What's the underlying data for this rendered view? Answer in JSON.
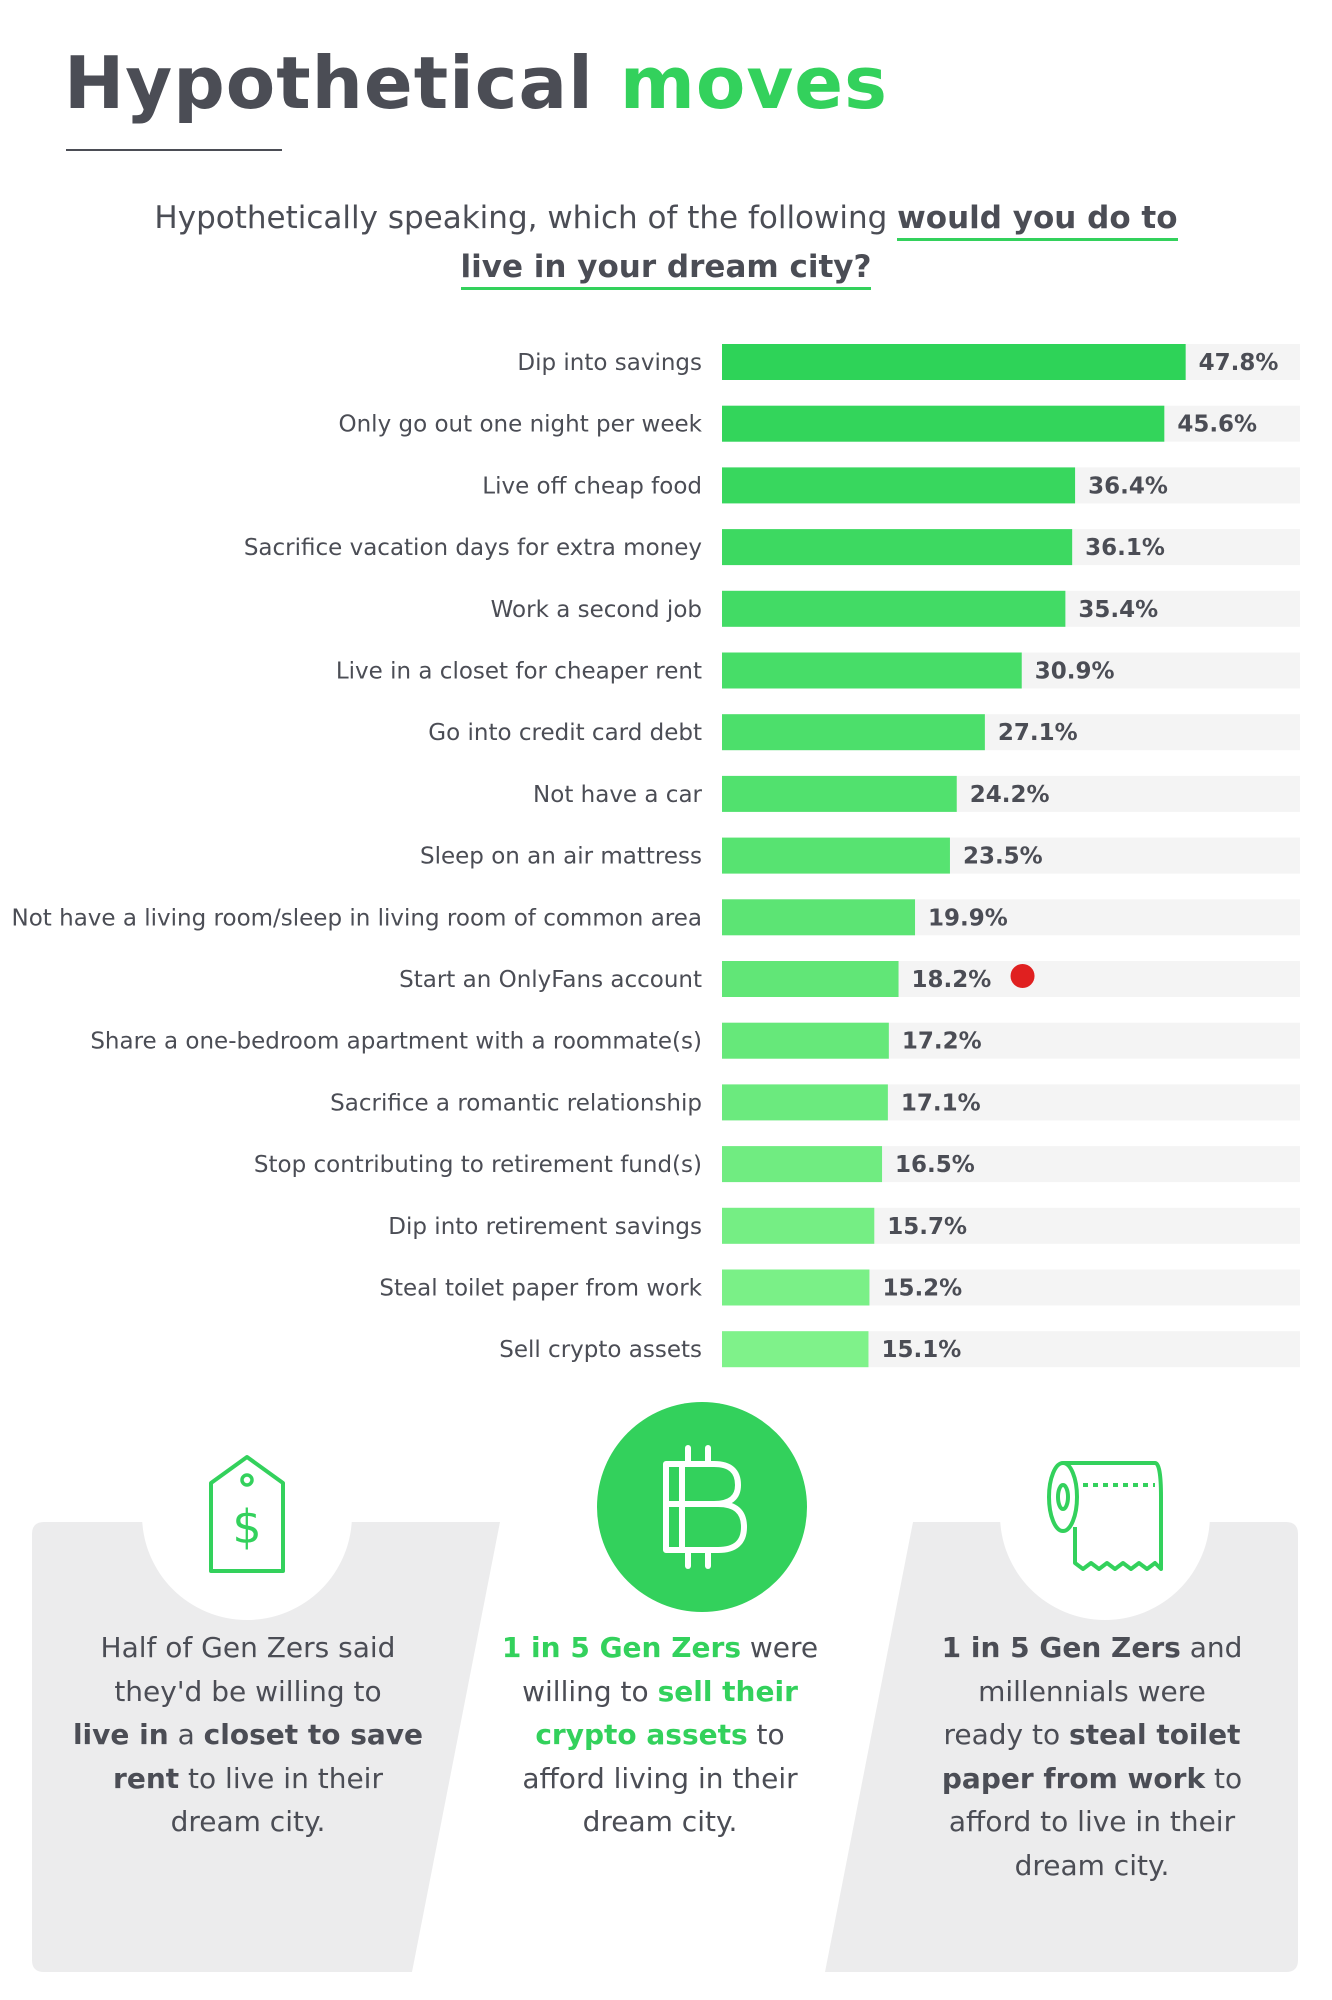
{
  "header": {
    "title_part1": "Hypothetical",
    "title_part2": "moves",
    "subtitle_plain": "Hypothetically speaking, which of the following",
    "subtitle_bold_1": "would you do to",
    "subtitle_bold_2": "live in your dream city?"
  },
  "chart_data": {
    "type": "bar",
    "orientation": "horizontal",
    "xlim": [
      0,
      60
    ],
    "categories": [
      "Dip into savings",
      "Only go out one night per week",
      "Live off cheap food",
      "Sacrifice vacation days for extra money",
      "Work a second job",
      "Live in a closet for cheaper rent",
      "Go into credit card debt",
      "Not have a car",
      "Sleep on an air mattress",
      "Not have a living room/sleep in living room of common area",
      "Start an OnlyFans account",
      "Share a one-bedroom apartment with a roommate(s)",
      "Sacrifice a romantic relationship",
      "Stop contributing to retirement fund(s)",
      "Dip into retirement savings",
      "Steal toilet paper from work",
      "Sell crypto assets"
    ],
    "values": [
      47.8,
      45.6,
      36.4,
      36.1,
      35.4,
      30.9,
      27.1,
      24.2,
      23.5,
      19.9,
      18.2,
      17.2,
      17.1,
      16.5,
      15.7,
      15.2,
      15.1
    ],
    "value_labels": [
      "47.8%",
      "45.6%",
      "36.4%",
      "36.1%",
      "35.4%",
      "30.9%",
      "27.1%",
      "24.2%",
      "23.5%",
      "19.9%",
      "18.2%",
      "17.2%",
      "17.1%",
      "16.5%",
      "15.7%",
      "15.2%",
      "15.1%"
    ],
    "bar_color_dark": "#2ed358",
    "bar_color_light": "#7ff28a",
    "track_color": "#f4f4f4",
    "marker": {
      "category": "Start an OnlyFans account",
      "color": "#e02020"
    }
  },
  "panels": [
    {
      "icon": "price-tag-dollar-icon",
      "t1": "Half of Gen Zers said",
      "t2": "they'd be willing to",
      "t3_b": "live in",
      "t3_n": " a ",
      "t3_b2": "closet to save",
      "t4_b": "rent",
      "t4_n": " to live in their",
      "t5": "dream city."
    },
    {
      "icon": "bitcoin-icon",
      "t1_g": "1 in 5 Gen Zers",
      "t1_n": " were",
      "t2_n": "willing to ",
      "t2_g": "sell their",
      "t3_g": "crypto assets",
      "t3_n": " to",
      "t4": "afford living in their",
      "t5": "dream city."
    },
    {
      "icon": "toilet-paper-icon",
      "t1_b": "1 in 5 Gen Zers",
      "t1_n": " and",
      "t2": "millennials were",
      "t3_n": "ready to ",
      "t3_b": "steal toilet",
      "t4_b": "paper from work",
      "t4_n": " to",
      "t5": "afford to live in their",
      "t6": "dream city."
    }
  ],
  "colors": {
    "accent": "#33d15c",
    "text": "#4b4d55",
    "panel_bg": "#ececed"
  }
}
